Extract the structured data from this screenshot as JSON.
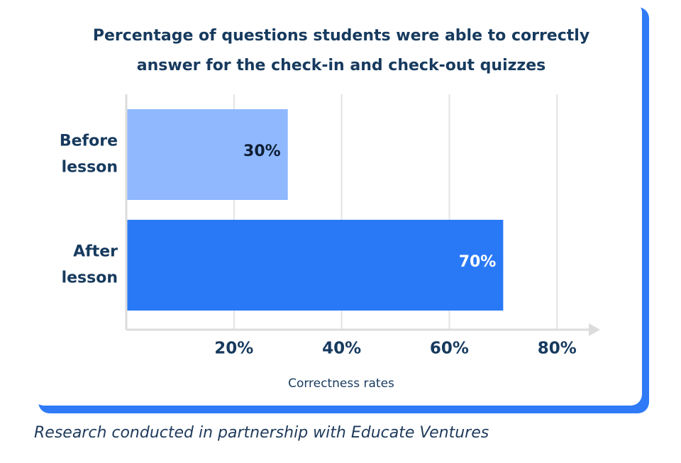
{
  "chart_data": {
    "type": "hbar",
    "title": "Percentage of questions students were able to correctly answer for the check-in and check-out quizzes",
    "categories": [
      "Before lesson",
      "After lesson"
    ],
    "values": [
      30,
      70
    ],
    "value_labels": [
      "30%",
      "70%"
    ],
    "colors": [
      "#8fb8ff",
      "#2979f6"
    ],
    "label_colors": [
      "#0f1e33",
      "#ffffff"
    ],
    "xlim": [
      0,
      88
    ],
    "xticks": [
      {
        "value": 20,
        "label": "20%"
      },
      {
        "value": 40,
        "label": "40%"
      },
      {
        "value": 60,
        "label": "60%"
      },
      {
        "value": 80,
        "label": "80%"
      }
    ],
    "xlabel": "Correctness rates",
    "grid": true
  },
  "caption": "Research conducted in partnership with Educate Ventures"
}
